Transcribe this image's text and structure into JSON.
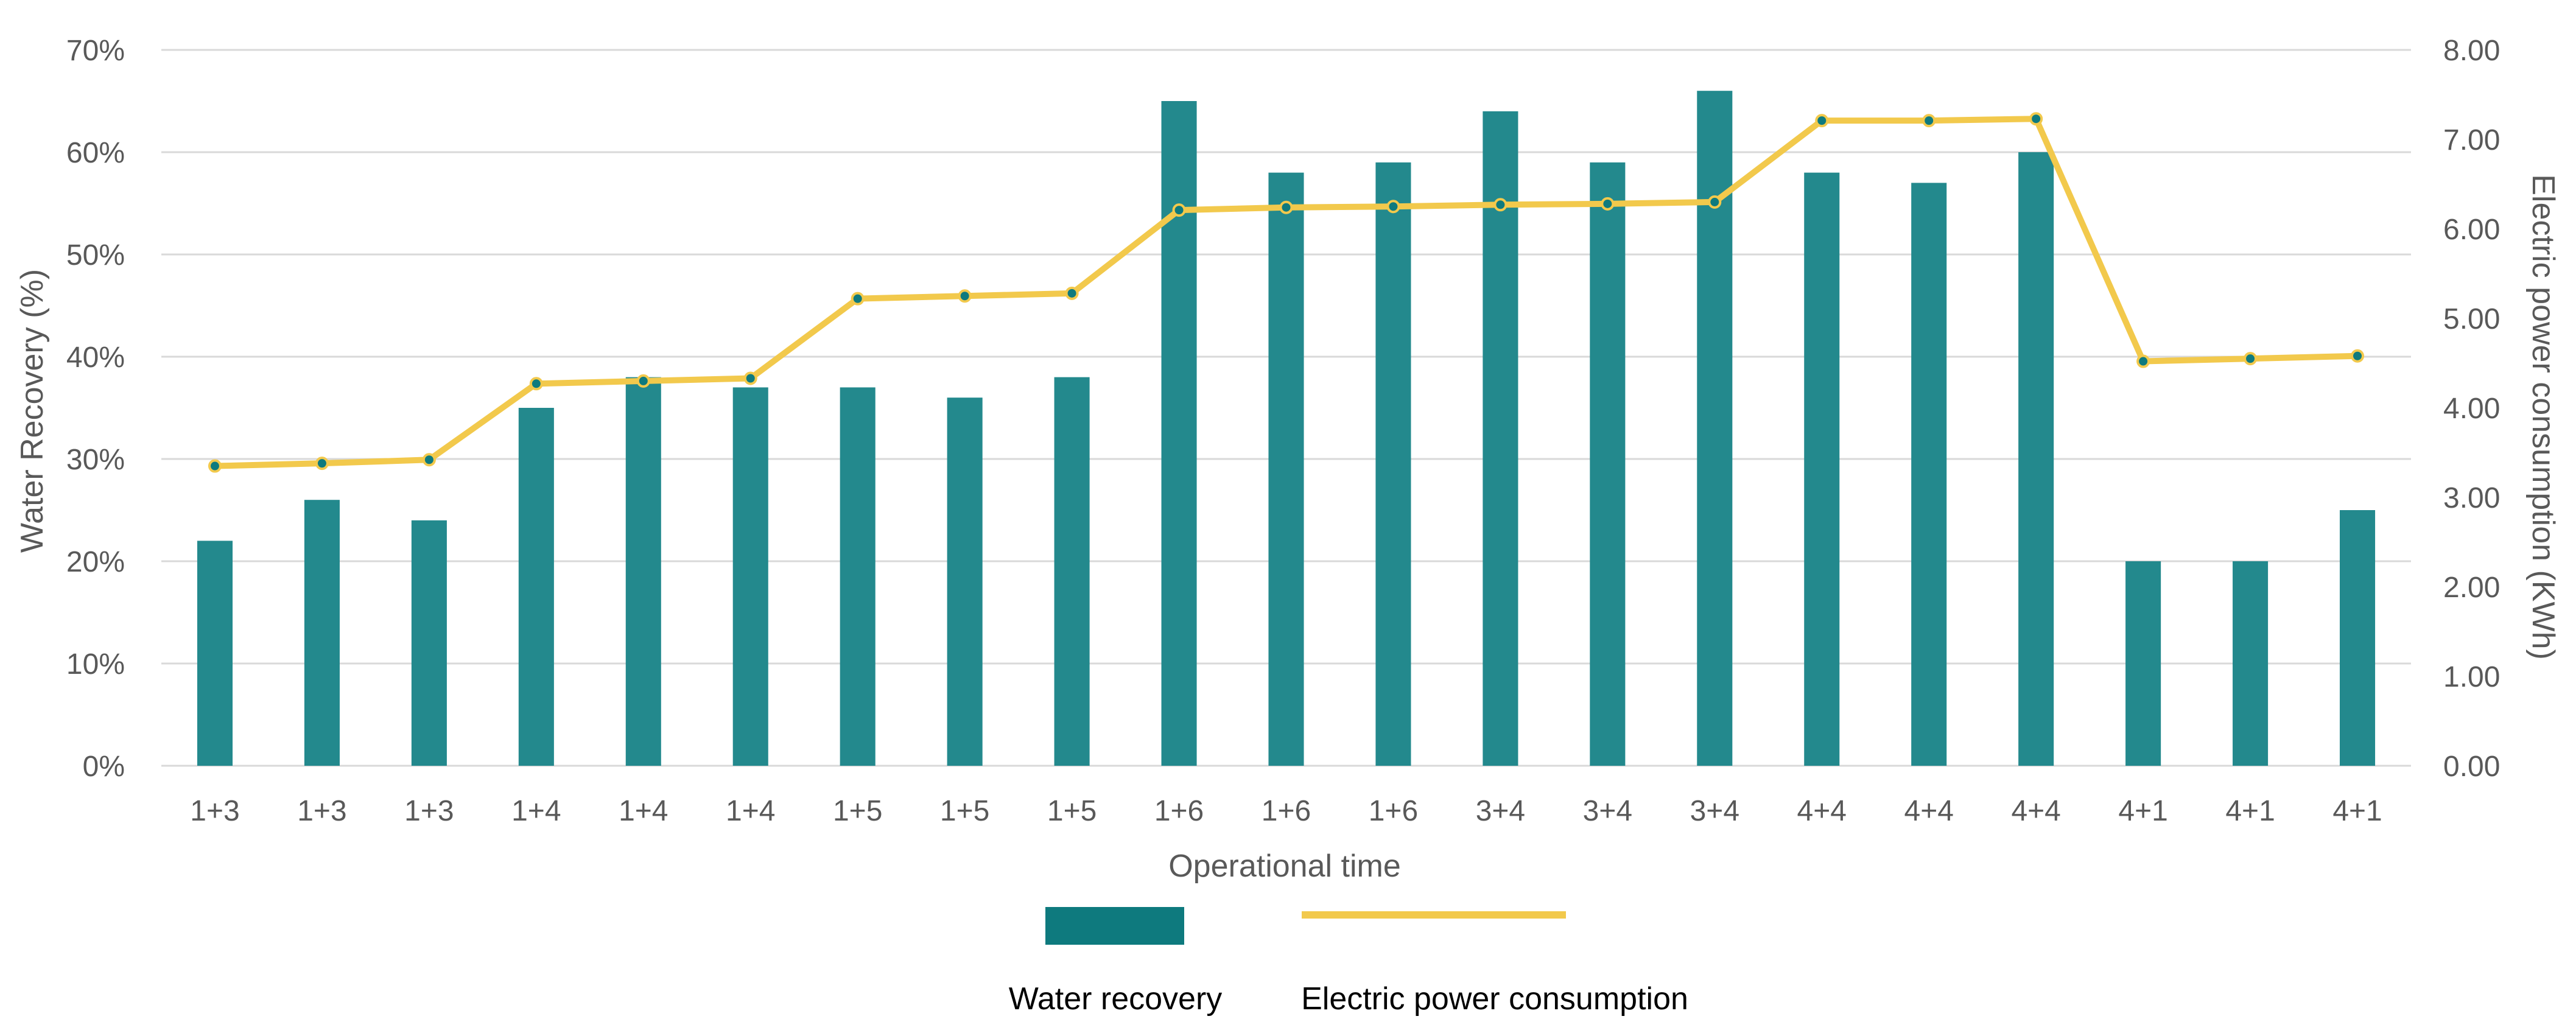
{
  "chart_data": {
    "type": "bar",
    "categories": [
      "1+3",
      "1+3",
      "1+3",
      "1+4",
      "1+4",
      "1+4",
      "1+5",
      "1+5",
      "1+5",
      "1+6",
      "1+6",
      "1+6",
      "3+4",
      "3+4",
      "3+4",
      "4+4",
      "4+4",
      "4+4",
      "4+1",
      "4+1",
      "4+1"
    ],
    "series": [
      {
        "name": "Water recovery",
        "type": "bar",
        "axis": "left",
        "color": "#23898d",
        "values": [
          22,
          26,
          24,
          35,
          38,
          37,
          37,
          36,
          38,
          65,
          58,
          59,
          64,
          59,
          66,
          58,
          57,
          60,
          20,
          20,
          25
        ]
      },
      {
        "name": "Electric power consumption",
        "type": "line",
        "axis": "right",
        "color": "#f2c94c",
        "marker_color": "#0e7a7e",
        "values": [
          3.35,
          3.38,
          3.42,
          4.27,
          4.3,
          4.33,
          5.22,
          5.25,
          5.28,
          6.21,
          6.24,
          6.25,
          6.27,
          6.28,
          6.3,
          7.21,
          7.21,
          7.23,
          4.52,
          4.55,
          4.58
        ]
      }
    ],
    "xlabel": "Operational time",
    "ylabel": "Water Recovery (%)",
    "y2label": "Electric power consumption (KWh)",
    "ylim": [
      0,
      70
    ],
    "y2lim": [
      0,
      8
    ],
    "yticks": [
      "0%",
      "10%",
      "20%",
      "30%",
      "40%",
      "50%",
      "60%",
      "70%"
    ],
    "y2ticks": [
      "0.00",
      "1.00",
      "2.00",
      "3.00",
      "4.00",
      "5.00",
      "6.00",
      "7.00",
      "8.00"
    ],
    "grid": true,
    "legend": [
      {
        "label": "Water recovery",
        "kind": "bar",
        "color": "#0e7a7e"
      },
      {
        "label": "Electric power consumption",
        "kind": "line",
        "color": "#f2c94c"
      }
    ],
    "legend_position": "bottom"
  }
}
